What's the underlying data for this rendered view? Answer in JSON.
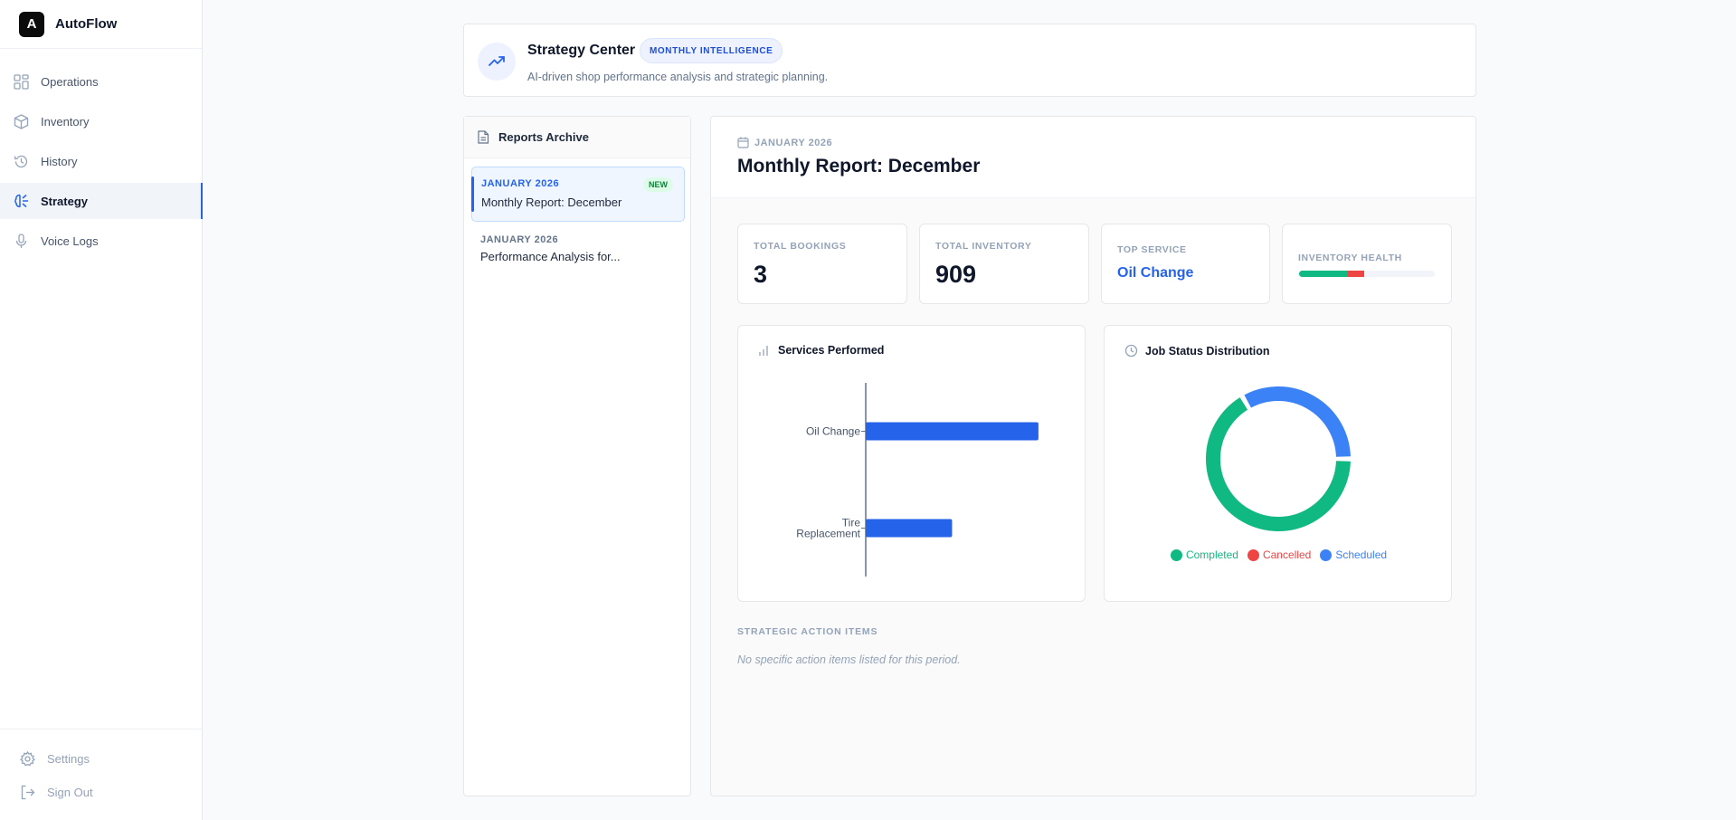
{
  "brand": {
    "logo_letter": "A",
    "name": "AutoFlow"
  },
  "sidebar": {
    "items": [
      {
        "label": "Operations",
        "icon": "grid-icon",
        "active": false
      },
      {
        "label": "Inventory",
        "icon": "box-icon",
        "active": false
      },
      {
        "label": "History",
        "icon": "history-icon",
        "active": false
      },
      {
        "label": "Strategy",
        "icon": "brain-icon",
        "active": true
      },
      {
        "label": "Voice Logs",
        "icon": "mic-icon",
        "active": false
      }
    ],
    "footer": {
      "settings": "Settings",
      "signout": "Sign Out"
    }
  },
  "header": {
    "title": "Strategy Center",
    "badge": "MONTHLY INTELLIGENCE",
    "subtitle": "AI-driven shop performance analysis and strategic planning."
  },
  "archive": {
    "title": "Reports Archive",
    "reports": [
      {
        "date": "JANUARY 2026",
        "title": "Monthly Report: December",
        "badge": "NEW",
        "selected": true
      },
      {
        "date": "JANUARY 2026",
        "title": "Performance Analysis for...",
        "badge": "",
        "selected": false
      }
    ]
  },
  "report": {
    "date": "JANUARY 2026",
    "title": "Monthly Report: December",
    "stats": {
      "bookings_label": "TOTAL BOOKINGS",
      "bookings_value": "3",
      "inventory_label": "TOTAL INVENTORY",
      "inventory_value": "909",
      "top_service_label": "TOP SERVICE",
      "top_service_value": "Oil Change",
      "health_label": "INVENTORY HEALTH",
      "health": {
        "good": 0.36,
        "bad": 0.12,
        "good_color": "#10b981",
        "bad_color": "#ef4444"
      }
    },
    "actions_title": "STRATEGIC ACTION ITEMS",
    "actions_empty": "No specific action items listed for this period."
  },
  "chart_data": [
    {
      "type": "bar",
      "orientation": "horizontal",
      "title": "Services Performed",
      "categories": [
        "Oil Change",
        "Tire Replacement"
      ],
      "values": [
        2,
        1
      ],
      "xlim": [
        0,
        2.2
      ],
      "color": "#2563eb"
    },
    {
      "type": "pie",
      "donut": true,
      "title": "Job Status Distribution",
      "labels": [
        "Completed",
        "Cancelled",
        "Scheduled"
      ],
      "values": [
        2,
        0,
        1
      ],
      "colors": [
        "#10b981",
        "#ef4444",
        "#3b82f6"
      ]
    }
  ]
}
